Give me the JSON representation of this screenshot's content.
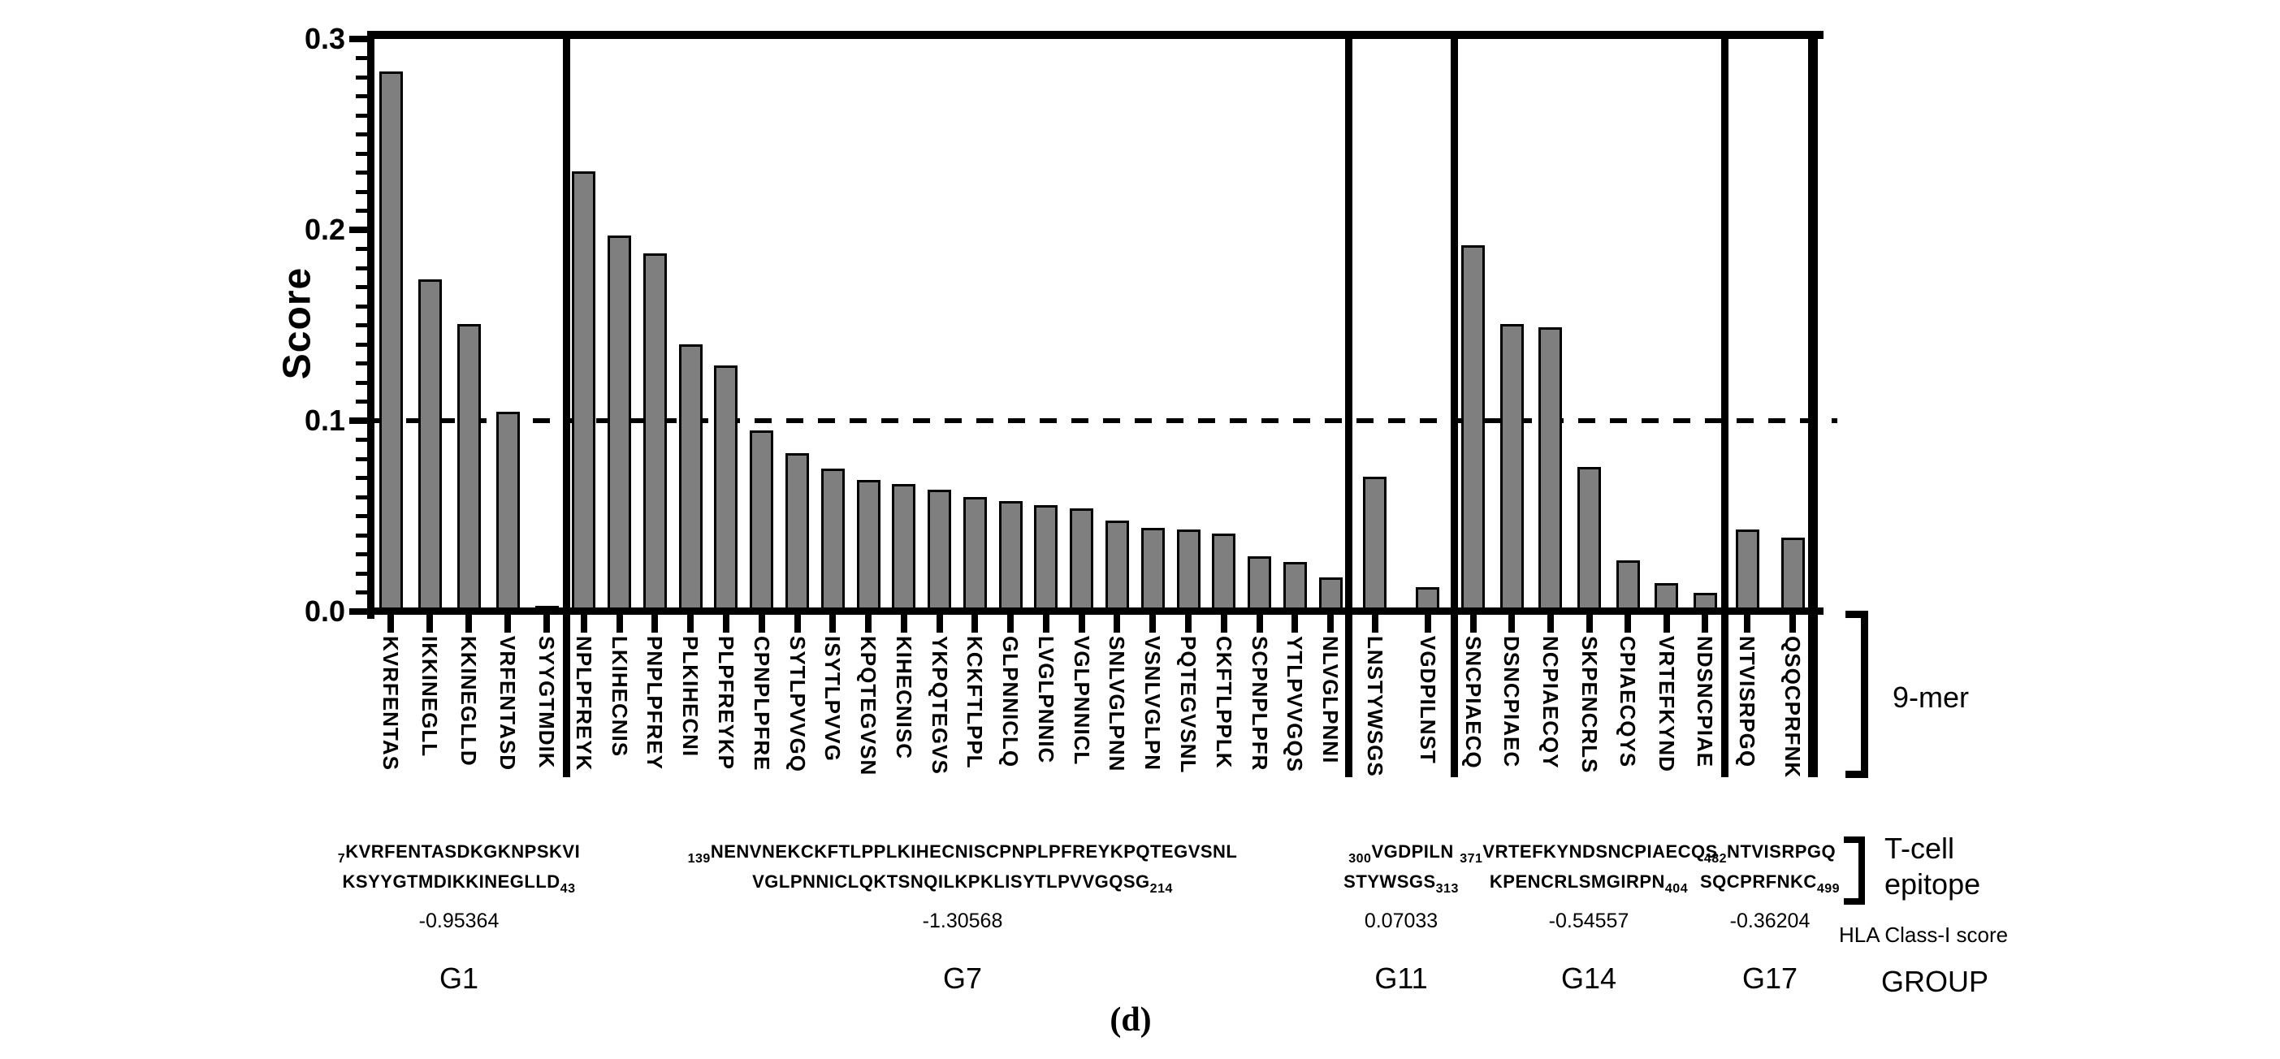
{
  "figure": {
    "ylabel": "Score",
    "caption": "(d)",
    "right_annotations": {
      "nine_mer": "9-mer",
      "tcell_line1": "T-cell",
      "tcell_line2": "epitope",
      "hla_score_label": "HLA Class-I score",
      "group_label": "GROUP"
    },
    "colors": {
      "bar_fill": "#7f7f7f",
      "bar_stroke": "#000000",
      "background": "#ffffff"
    }
  },
  "chart_data": {
    "type": "bar",
    "title": "",
    "xlabel": "",
    "ylabel": "Score",
    "ylim": [
      0,
      0.3
    ],
    "yticks": [
      "0.0",
      "0.1",
      "0.2",
      "0.3"
    ],
    "minor_tick_step": 0.01,
    "grid": false,
    "threshold_line": {
      "y": 0.1,
      "style": "dashed"
    },
    "legend_position": "none",
    "groups": [
      {
        "name": "G1",
        "hla_class_i_score": "-0.95364",
        "epitope": {
          "start": "7",
          "line1": "KVRFENTASDKGKNPSKVI",
          "line2": "KSYYGTMDIKKINEGLLD",
          "end": "43"
        },
        "bars": [
          {
            "label": "KVRFENTAS",
            "value": 0.282
          },
          {
            "label": "IKKINEGLL",
            "value": 0.173
          },
          {
            "label": "KKINEGLLD",
            "value": 0.15
          },
          {
            "label": "VRFENTASD",
            "value": 0.104
          },
          {
            "label": "SYYGTMDIK",
            "value": 0.002
          }
        ]
      },
      {
        "name": "G7",
        "hla_class_i_score": "-1.30568",
        "epitope": {
          "start": "139",
          "line1": "NENVNEKCKFTLPPLKIHECNISCPNPLPFREYKPQTEGVSNL",
          "line2": "VGLPNNICLQKTSNQILKPKLISYTLPVVGQSG",
          "end": "214"
        },
        "bars": [
          {
            "label": "NPLPFREYK",
            "value": 0.23
          },
          {
            "label": "LKIHECNIS",
            "value": 0.196
          },
          {
            "label": "PNPLPFREY",
            "value": 0.187
          },
          {
            "label": "PLKIHECNI",
            "value": 0.139
          },
          {
            "label": "PLPFREYKP",
            "value": 0.128
          },
          {
            "label": "CPNPLPFRE",
            "value": 0.094
          },
          {
            "label": "SYTLPVVGQ",
            "value": 0.082
          },
          {
            "label": "ISYTLPVVG",
            "value": 0.074
          },
          {
            "label": "KPQTEGVSN",
            "value": 0.068
          },
          {
            "label": "KIHECNISC",
            "value": 0.066
          },
          {
            "label": "YKPQTEGVS",
            "value": 0.063
          },
          {
            "label": "KCKFTLPPL",
            "value": 0.059
          },
          {
            "label": "GLPNNICLQ",
            "value": 0.057
          },
          {
            "label": "LVGLPNNIC",
            "value": 0.055
          },
          {
            "label": "VGLPNNICL",
            "value": 0.053
          },
          {
            "label": "SNLVGLPNN",
            "value": 0.047
          },
          {
            "label": "VSNLVGLPN",
            "value": 0.043
          },
          {
            "label": "PQTEGVSNL",
            "value": 0.042
          },
          {
            "label": "CKFTLPPLK",
            "value": 0.04
          },
          {
            "label": "SCPNPLPFR",
            "value": 0.028
          },
          {
            "label": "YTLPVVGQS",
            "value": 0.025
          },
          {
            "label": "NLVGLPNNI",
            "value": 0.017
          }
        ]
      },
      {
        "name": "G11",
        "hla_class_i_score": "0.07033",
        "epitope": {
          "start": "300",
          "line1": "VGDPILN",
          "line2": "STYWSGS",
          "end": "313"
        },
        "bars": [
          {
            "label": "LNSTYWSGS",
            "value": 0.07
          },
          {
            "label": "VGDPILNST",
            "value": 0.012
          }
        ]
      },
      {
        "name": "G14",
        "hla_class_i_score": "-0.54557",
        "epitope": {
          "start": "371",
          "line1": "VRTEFKYNDSNCPIAECQS",
          "line2": "KPENCRLSMGIRPN",
          "end": "404"
        },
        "bars": [
          {
            "label": "SNCPIAECQ",
            "value": 0.191
          },
          {
            "label": "DSNCPIAEC",
            "value": 0.15
          },
          {
            "label": "NCPIAECQY",
            "value": 0.148
          },
          {
            "label": "SKPENCRLS",
            "value": 0.075
          },
          {
            "label": "CPIAECQYS",
            "value": 0.026
          },
          {
            "label": "VRTEFKYND",
            "value": 0.014
          },
          {
            "label": "NDSNCPIAE",
            "value": 0.009
          }
        ]
      },
      {
        "name": "G17",
        "hla_class_i_score": "-0.36204",
        "epitope": {
          "start": "482",
          "line1": "NTVISRPGQ",
          "line2": "SQCPRFNKC",
          "end": "499"
        },
        "bars": [
          {
            "label": "NTVISRPGQ",
            "value": 0.042
          },
          {
            "label": "QSQCPRFNK",
            "value": 0.038
          }
        ]
      }
    ]
  }
}
